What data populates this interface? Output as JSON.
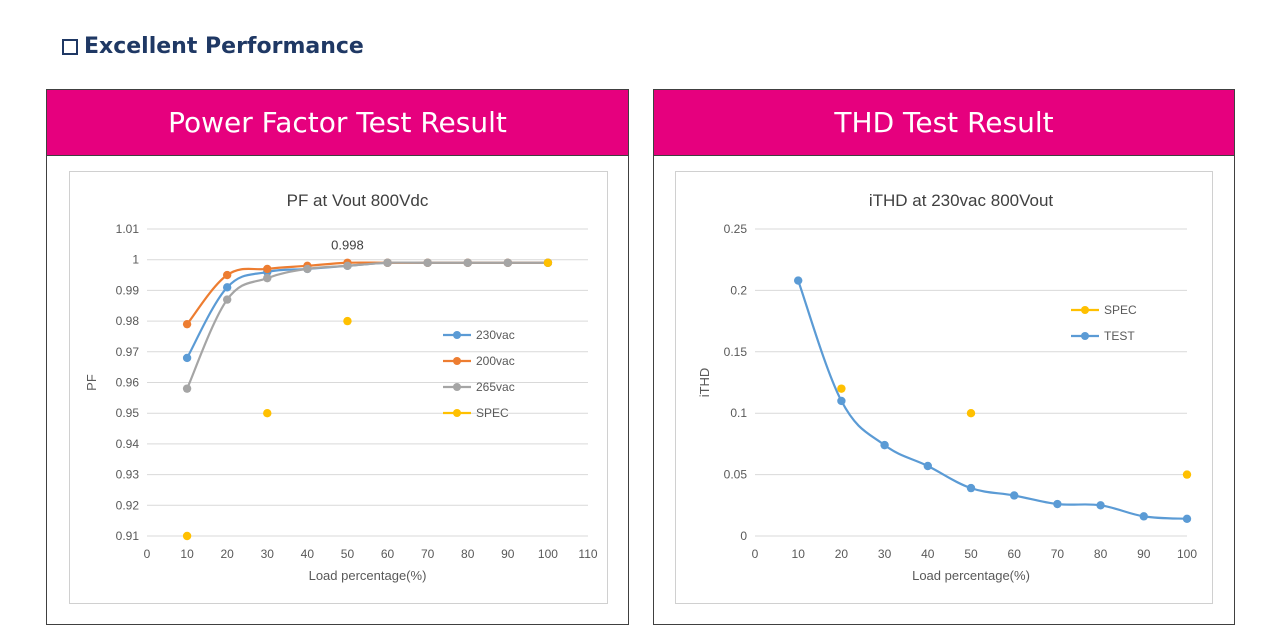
{
  "heading": "Excellent Performance",
  "panels": {
    "left": {
      "header": "Power Factor Test Result"
    },
    "right": {
      "header": "THD Test Result"
    }
  },
  "chart_data": [
    {
      "type": "line",
      "title": "PF at Vout 800Vdc",
      "xlabel": "Load percentage(%)",
      "ylabel": "PF",
      "xlim": [
        0,
        110
      ],
      "ylim": [
        0.91,
        1.01
      ],
      "xticks": [
        "0",
        "10",
        "20",
        "30",
        "40",
        "50",
        "60",
        "70",
        "80",
        "90",
        "100",
        "110"
      ],
      "yticks": [
        "0.91",
        "0.92",
        "0.93",
        "0.94",
        "0.95",
        "0.96",
        "0.97",
        "0.98",
        "0.99",
        "1",
        "1.01"
      ],
      "grid": true,
      "legend": "right",
      "annotations": [
        {
          "text": "0.998",
          "x": 50,
          "y": 1.0
        }
      ],
      "series": [
        {
          "name": "230vac",
          "color": "#5b9bd5",
          "mode": "line",
          "x": [
            10,
            20,
            30,
            40,
            50,
            60,
            70,
            80,
            90,
            100
          ],
          "y": [
            0.968,
            0.991,
            0.996,
            0.997,
            0.998,
            0.999,
            0.999,
            0.999,
            0.999,
            0.999
          ]
        },
        {
          "name": "200vac",
          "color": "#ed7d31",
          "mode": "line",
          "x": [
            10,
            20,
            30,
            40,
            50,
            60,
            70,
            80,
            90,
            100
          ],
          "y": [
            0.979,
            0.995,
            0.997,
            0.998,
            0.999,
            0.999,
            0.999,
            0.999,
            0.999,
            0.999
          ]
        },
        {
          "name": "265vac",
          "color": "#a5a5a5",
          "mode": "line",
          "x": [
            10,
            20,
            30,
            40,
            50,
            60,
            70,
            80,
            90,
            100
          ],
          "y": [
            0.958,
            0.987,
            0.994,
            0.997,
            0.998,
            0.999,
            0.999,
            0.999,
            0.999,
            0.999
          ]
        },
        {
          "name": "SPEC",
          "color": "#ffc000",
          "mode": "points",
          "x": [
            10,
            30,
            50,
            100
          ],
          "y": [
            0.91,
            0.95,
            0.98,
            0.999
          ]
        }
      ]
    },
    {
      "type": "line",
      "title": "iTHD at 230vac 800Vout",
      "xlabel": "Load percentage(%)",
      "ylabel": "iTHD",
      "xlim": [
        0,
        100
      ],
      "ylim": [
        0,
        0.25
      ],
      "xticks": [
        "0",
        "10",
        "20",
        "30",
        "40",
        "50",
        "60",
        "70",
        "80",
        "90",
        "100"
      ],
      "yticks": [
        "0",
        "0.05",
        "0.1",
        "0.15",
        "0.2",
        "0.25"
      ],
      "grid": true,
      "legend": "right",
      "annotations": [],
      "series": [
        {
          "name": "SPEC",
          "color": "#ffc000",
          "mode": "points",
          "x": [
            20,
            50,
            100
          ],
          "y": [
            0.12,
            0.1,
            0.05
          ]
        },
        {
          "name": "TEST",
          "color": "#5b9bd5",
          "mode": "line",
          "x": [
            10,
            20,
            30,
            40,
            50,
            60,
            70,
            80,
            90,
            100
          ],
          "y": [
            0.208,
            0.11,
            0.074,
            0.057,
            0.039,
            0.033,
            0.026,
            0.025,
            0.016,
            0.014
          ]
        }
      ]
    }
  ]
}
